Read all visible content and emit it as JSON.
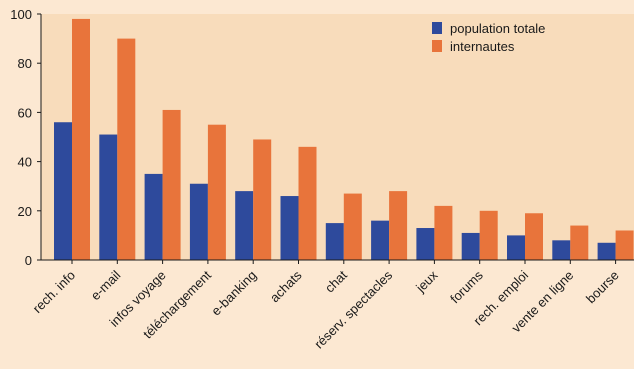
{
  "chart_data": {
    "type": "bar",
    "categories": [
      "rech. info",
      "e-mail",
      "infos voyage",
      "téléchargement",
      "e-banking",
      "achats",
      "chat",
      "réserv. spectacles",
      "jeux",
      "forums",
      "rech. emploi",
      "vente en ligne",
      "bourse"
    ],
    "series": [
      {
        "name": "population totale",
        "values": [
          56,
          51,
          35,
          31,
          28,
          26,
          15,
          16,
          13,
          11,
          10,
          8,
          7
        ],
        "color": "#2e4a9c"
      },
      {
        "name": "internautes",
        "values": [
          98,
          90,
          61,
          55,
          49,
          46,
          27,
          28,
          22,
          20,
          19,
          14,
          12
        ],
        "color": "#e8743b"
      }
    ],
    "y_ticks": [
      "0",
      "20",
      "40",
      "60",
      "80",
      "100"
    ],
    "ylim": [
      0,
      100
    ],
    "grid": false,
    "legend_position": "top-right",
    "colors": {
      "plot_bg": "#f8dcbb",
      "page_bg": "#fce8d2",
      "axis": "#1a1a1a"
    }
  }
}
